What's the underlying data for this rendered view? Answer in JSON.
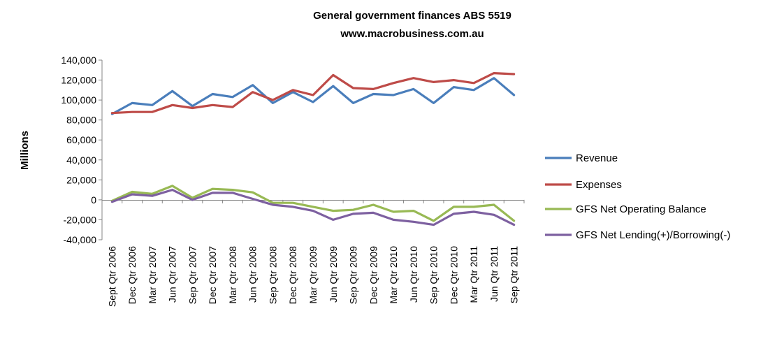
{
  "chart_data": {
    "type": "line",
    "title": "General government finances ABS 5519",
    "subtitle": "www.macrobusiness.com.au",
    "xlabel": "",
    "ylabel": "Millions",
    "ylim": [
      -40000,
      140000
    ],
    "yticks": [
      -40000,
      -20000,
      0,
      20000,
      40000,
      60000,
      80000,
      100000,
      120000,
      140000
    ],
    "ytick_labels": [
      "-40,000",
      "-20,000",
      "0",
      "20,000",
      "40,000",
      "60,000",
      "80,000",
      "100,000",
      "120,000",
      "140,000"
    ],
    "grid": false,
    "legend_position": "right",
    "categories": [
      "Sept Qtr 2006",
      "Dec Qtr 2006",
      "Mar Qtr 2007",
      "Jun Qtr 2007",
      "Sep Qtr 2007",
      "Dec Qtr 2007",
      "Mar Qtr 2008",
      "Jun Qtr 2008",
      "Sep Qtr 2008",
      "Dec Qtr 2008",
      "Mar Qtr 2009",
      "Jun Qtr 2009",
      "Sep Qtr 2009",
      "Dec Qtr 2009",
      "Mar Qtr 2010",
      "Jun Qtr 2010",
      "Sep Qtr 2010",
      "Dec Qtr 2010",
      "Mar Qtr 2011",
      "Jun Qtr 2011",
      "Sep Qtr 2011"
    ],
    "series": [
      {
        "name": "Revenue",
        "color": "#4a7ebb",
        "values": [
          86000,
          97000,
          95000,
          109000,
          94000,
          106000,
          103000,
          115000,
          97000,
          108000,
          98000,
          114000,
          97000,
          106000,
          105000,
          111000,
          97000,
          113000,
          110000,
          122000,
          105000
        ]
      },
      {
        "name": "Expenses",
        "color": "#be4b48",
        "values": [
          87000,
          88000,
          88000,
          95000,
          92000,
          95000,
          93000,
          108000,
          100000,
          110000,
          105000,
          125000,
          112000,
          111000,
          117000,
          122000,
          118000,
          120000,
          117000,
          127000,
          126000
        ]
      },
      {
        "name": "GFS Net Operating Balance",
        "color": "#98b954",
        "values": [
          -1000,
          8000,
          6000,
          14000,
          2000,
          11000,
          10000,
          7500,
          -3000,
          -3000,
          -7000,
          -11000,
          -10000,
          -5000,
          -12000,
          -11000,
          -21000,
          -7000,
          -7000,
          -5000,
          -21000
        ]
      },
      {
        "name": "GFS Net Lending(+)/Borrowing(-)",
        "color": "#7d60a0",
        "values": [
          -2000,
          5500,
          4000,
          10000,
          0,
          7000,
          7000,
          1000,
          -5000,
          -7000,
          -11000,
          -20000,
          -14000,
          -13000,
          -20000,
          -22000,
          -25000,
          -14000,
          -12000,
          -15000,
          -25000
        ]
      }
    ]
  }
}
